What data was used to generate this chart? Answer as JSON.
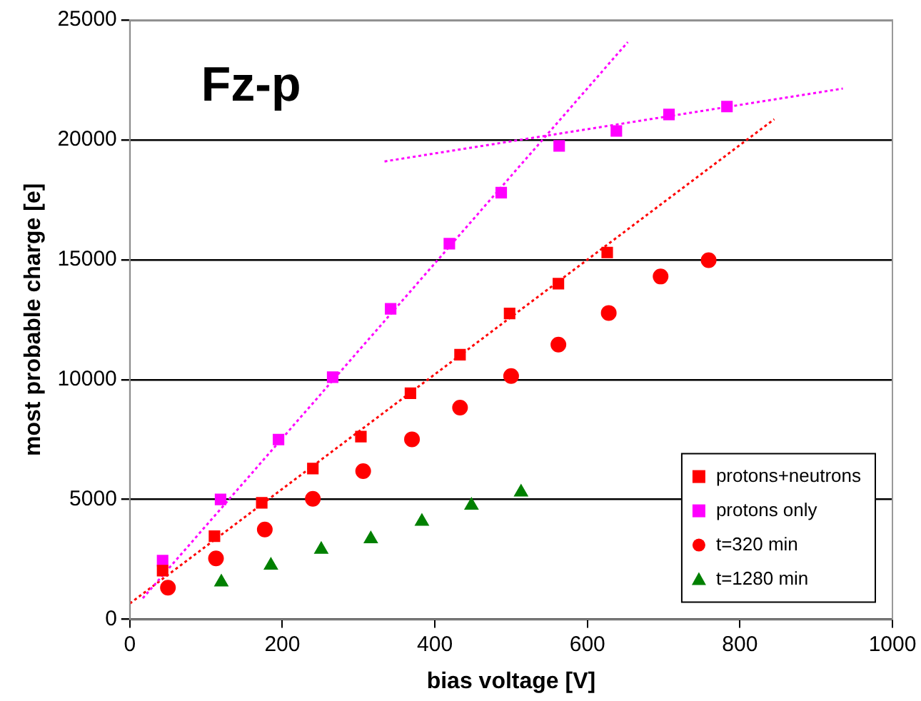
{
  "chart_data": {
    "type": "scatter",
    "xlabel": "bias voltage [V]",
    "ylabel": "most probable charge [e]",
    "annotations": [
      "Fz-p"
    ],
    "xlim": [
      0,
      1000
    ],
    "xticks": [
      0,
      200,
      400,
      600,
      800,
      1000
    ],
    "ylim": [
      0,
      25000
    ],
    "yticks": [
      0,
      5000,
      10000,
      15000,
      20000,
      25000
    ],
    "grid": "y",
    "legend": "bottom right",
    "series": [
      {
        "name": "protons+neutrons",
        "color": "#ff0000",
        "marker": "square",
        "x": [
          43,
          111,
          173,
          240,
          303,
          368,
          433,
          498,
          562,
          626
        ],
        "values": [
          2030,
          3470,
          4860,
          6290,
          7620,
          9430,
          11040,
          12760,
          14000,
          15300
        ]
      },
      {
        "name": "protons only",
        "color": "#ff00ff",
        "marker": "square",
        "x": [
          43,
          119,
          195,
          266,
          342,
          419,
          487,
          563,
          638,
          707,
          783
        ],
        "values": [
          2450,
          5000,
          7500,
          10100,
          12950,
          15670,
          17800,
          19750,
          20370,
          21060,
          21390
        ]
      },
      {
        "name": "t=320 min",
        "color": "#ff0000",
        "marker": "circle",
        "x": [
          50,
          113,
          177,
          240,
          306,
          370,
          433,
          500,
          562,
          628,
          696,
          759
        ],
        "values": [
          1320,
          2540,
          3750,
          5030,
          6180,
          7510,
          8830,
          10150,
          11460,
          12780,
          14300,
          14980
        ]
      },
      {
        "name": "t=1280 min",
        "color": "#008000",
        "marker": "triangle",
        "x": [
          120,
          185,
          251,
          316,
          383,
          448,
          513
        ],
        "values": [
          1550,
          2250,
          2910,
          3350,
          4080,
          4750,
          5300
        ]
      },
      {
        "type": "line",
        "color": "#ff00ff",
        "marker": "none",
        "line_style": "dotted",
        "x": [
          17,
          653
        ],
        "values": [
          880,
          24080
        ]
      },
      {
        "type": "line",
        "color": "#ff00ff",
        "marker": "none",
        "line_style": "dotted",
        "x": [
          334,
          935
        ],
        "values": [
          19100,
          22140
        ]
      },
      {
        "type": "line",
        "color": "#ff0000",
        "marker": "none",
        "line_style": "dotted",
        "x": [
          0,
          845
        ],
        "values": [
          660,
          20860
        ]
      }
    ]
  }
}
